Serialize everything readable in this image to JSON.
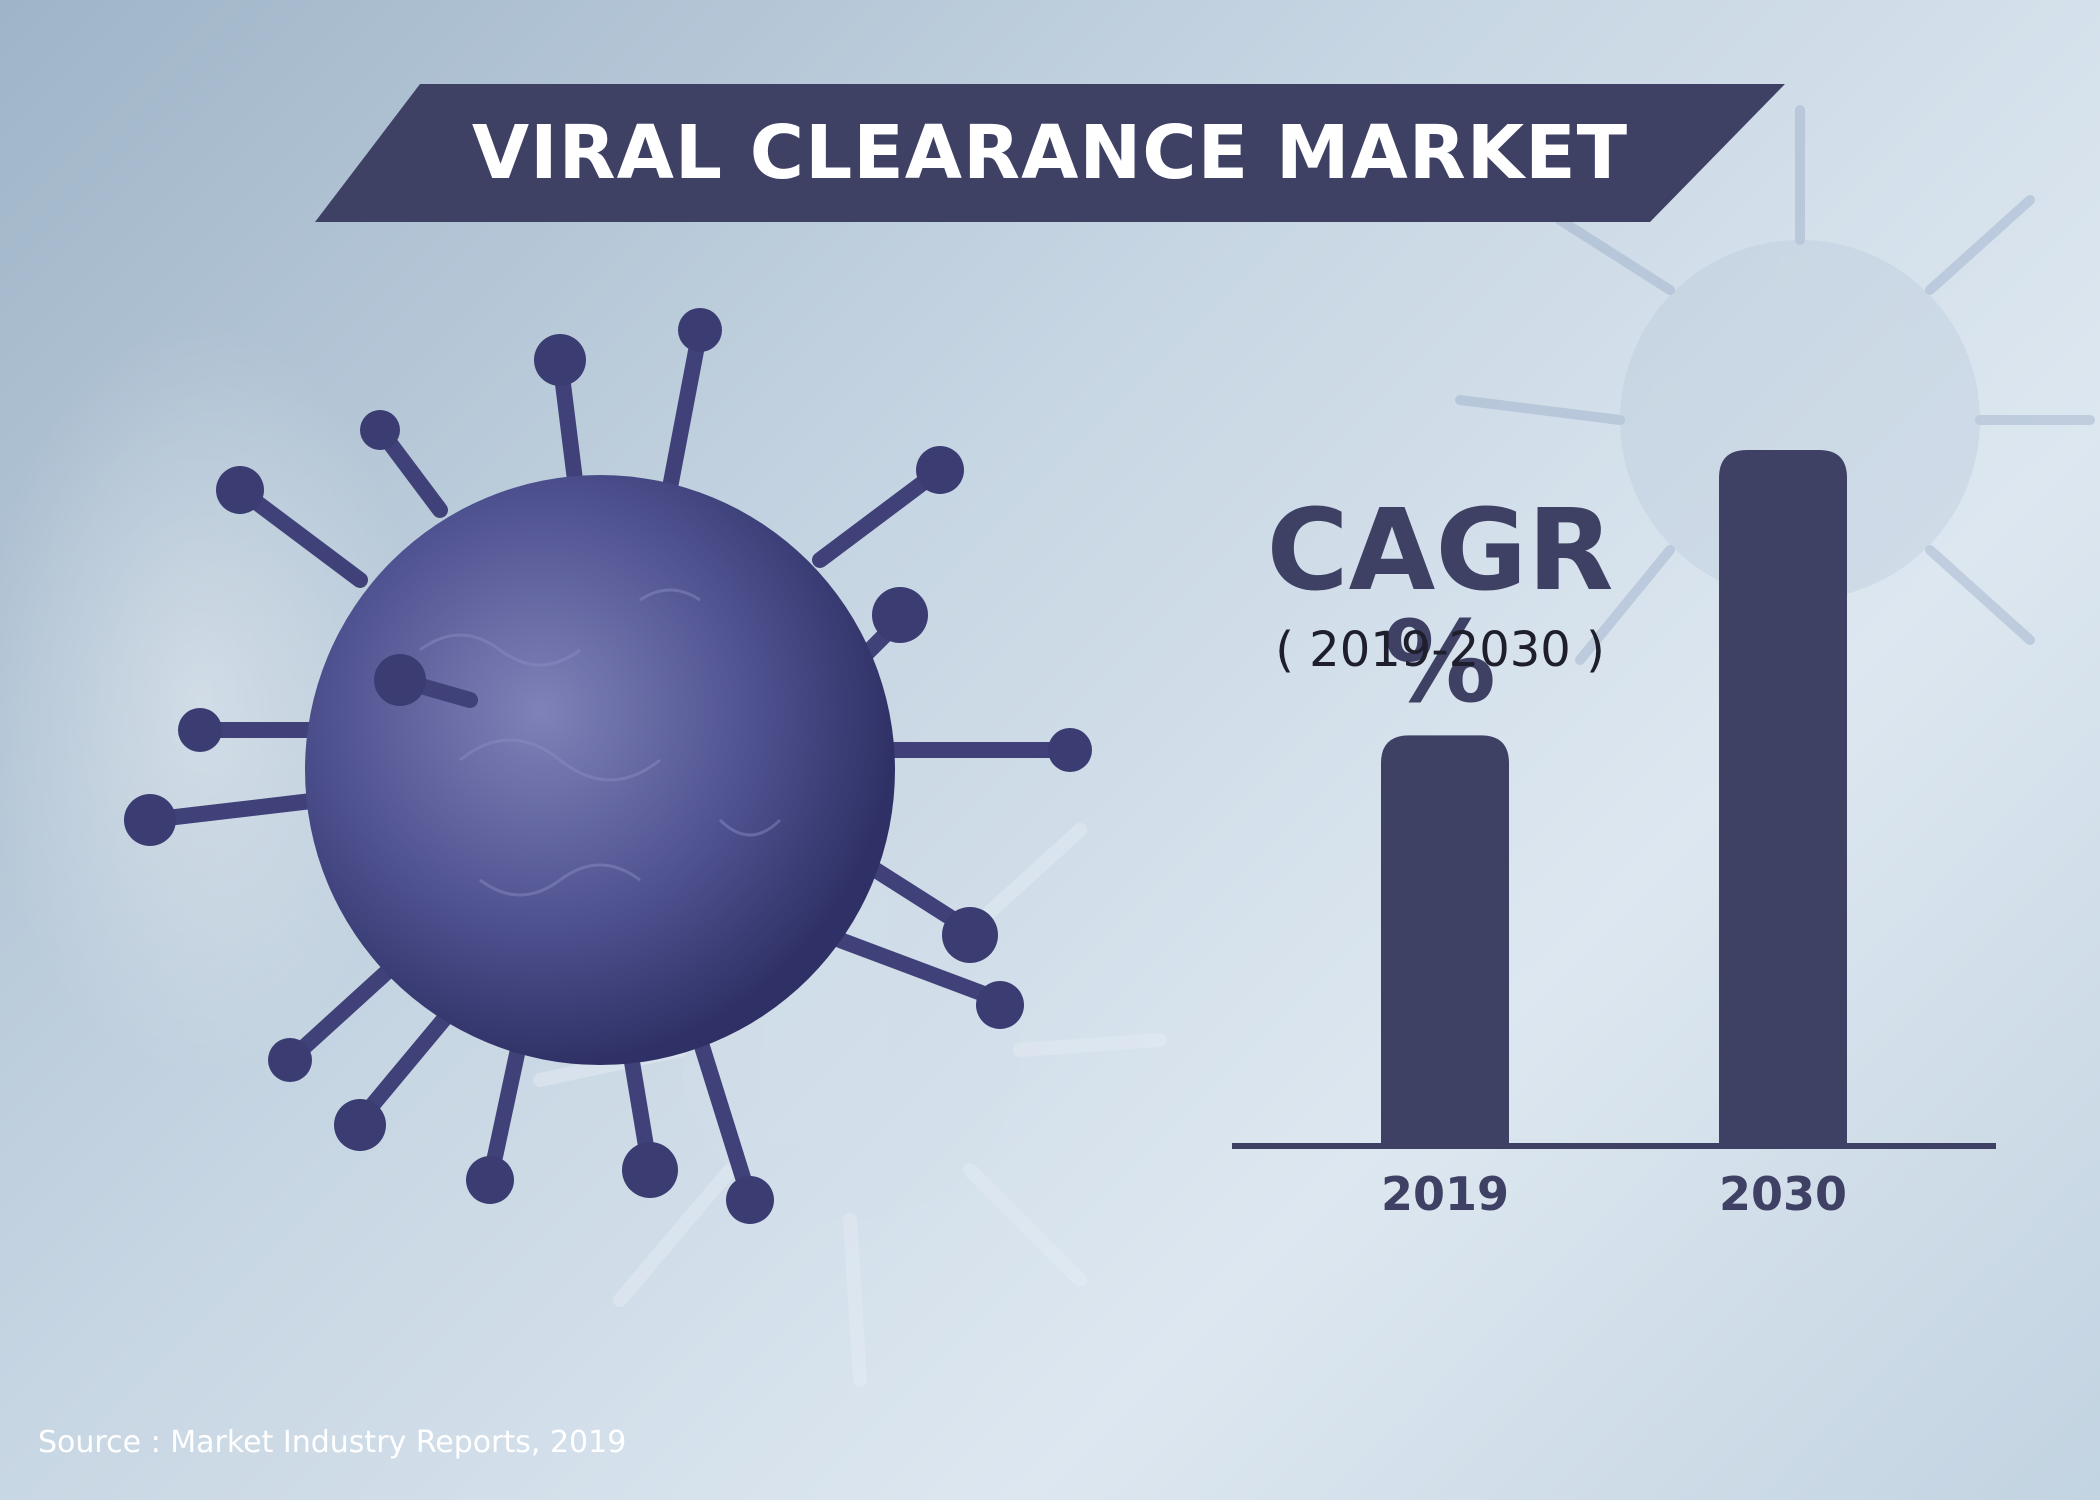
{
  "title": "VIRAL CLEARANCE MARKET",
  "cagr": {
    "heading": "CAGR %",
    "range": "( 2019-2030 )"
  },
  "source": "Source : Market Industry Reports, 2019",
  "colors": {
    "banner": "#3e4164",
    "bar": "#3e4164",
    "virus": "#5b5e9a",
    "background": "#c7d6e3"
  },
  "chart_data": {
    "type": "bar",
    "title": "",
    "xlabel": "",
    "ylabel": "",
    "categories": [
      "2019",
      "2030"
    ],
    "values": [
      0.59,
      1.0
    ],
    "ylim": [
      0,
      1
    ],
    "grid": false,
    "legend": "none"
  }
}
